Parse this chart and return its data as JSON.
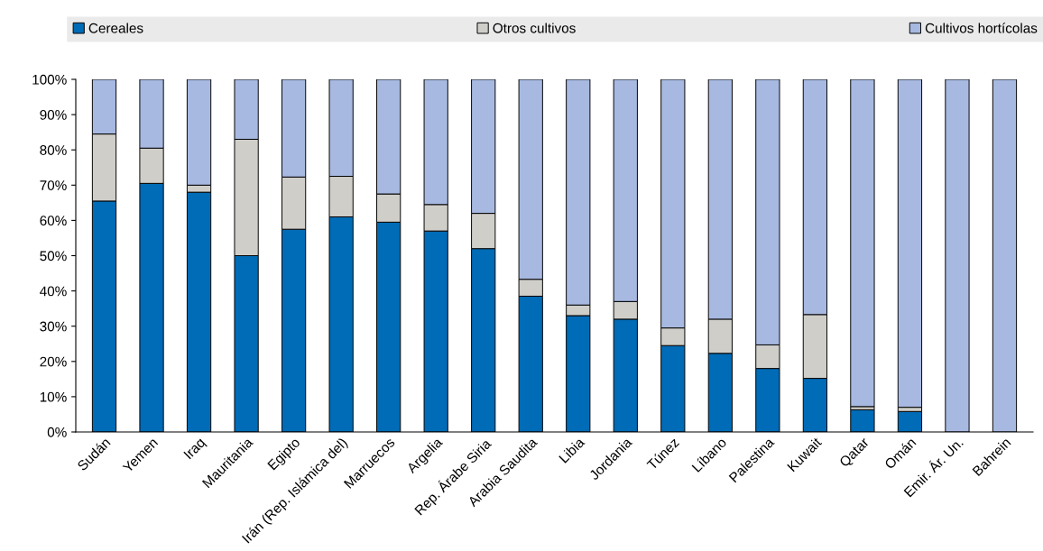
{
  "chart_data": {
    "type": "bar",
    "stacked": true,
    "legend": "top",
    "grid": false,
    "categories": [
      "Sudán",
      "Yemen",
      "Iraq",
      "Mauritania",
      "Egipto",
      "Irán (Rep. Islámica del)",
      "Marruecos",
      "Argelia",
      "Rep. Árabe Siria",
      "Arabia Saudita",
      "Libia",
      "Jordania",
      "Túnez",
      "Líbano",
      "Palestina",
      "Kuwait",
      "Qatar",
      "Omán",
      "Emir. Ár. Un.",
      "Bahrein"
    ],
    "ylim": [
      0,
      100
    ],
    "yticks": [
      {
        "value": 0,
        "label": "0%"
      },
      {
        "value": 10,
        "label": "10%"
      },
      {
        "value": 20,
        "label": "20%"
      },
      {
        "value": 30,
        "label": "30%"
      },
      {
        "value": 40,
        "label": "40%"
      },
      {
        "value": 50,
        "label": "50%"
      },
      {
        "value": 60,
        "label": "60%"
      },
      {
        "value": 70,
        "label": "70%"
      },
      {
        "value": 80,
        "label": "80%"
      },
      {
        "value": 90,
        "label": "90%"
      },
      {
        "value": 100,
        "label": "100%"
      }
    ],
    "series": [
      {
        "name": "Cereales",
        "color": "#006bb6",
        "values": [
          65.5,
          70.5,
          68,
          50,
          57.5,
          61,
          59.5,
          57,
          52,
          38.5,
          33,
          32,
          24.5,
          22.3,
          18,
          15.2,
          6.3,
          5.8,
          null,
          null
        ]
      },
      {
        "name": "Otros cultivos",
        "color": "#d0cec9",
        "values": [
          19,
          10,
          2,
          33,
          14.8,
          11.5,
          8,
          7.5,
          10,
          4.8,
          3,
          5,
          5,
          9.7,
          6.7,
          18.1,
          0.9,
          1.2,
          null,
          null
        ]
      },
      {
        "name": "Cultivos hortícolas",
        "color": "#a7b9e0",
        "values": [
          15.5,
          19.5,
          30,
          17,
          27.7,
          27.5,
          32.5,
          35.5,
          38,
          56.7,
          64,
          63,
          70.5,
          68,
          75.3,
          66.7,
          92.8,
          93,
          100,
          100
        ]
      }
    ]
  }
}
